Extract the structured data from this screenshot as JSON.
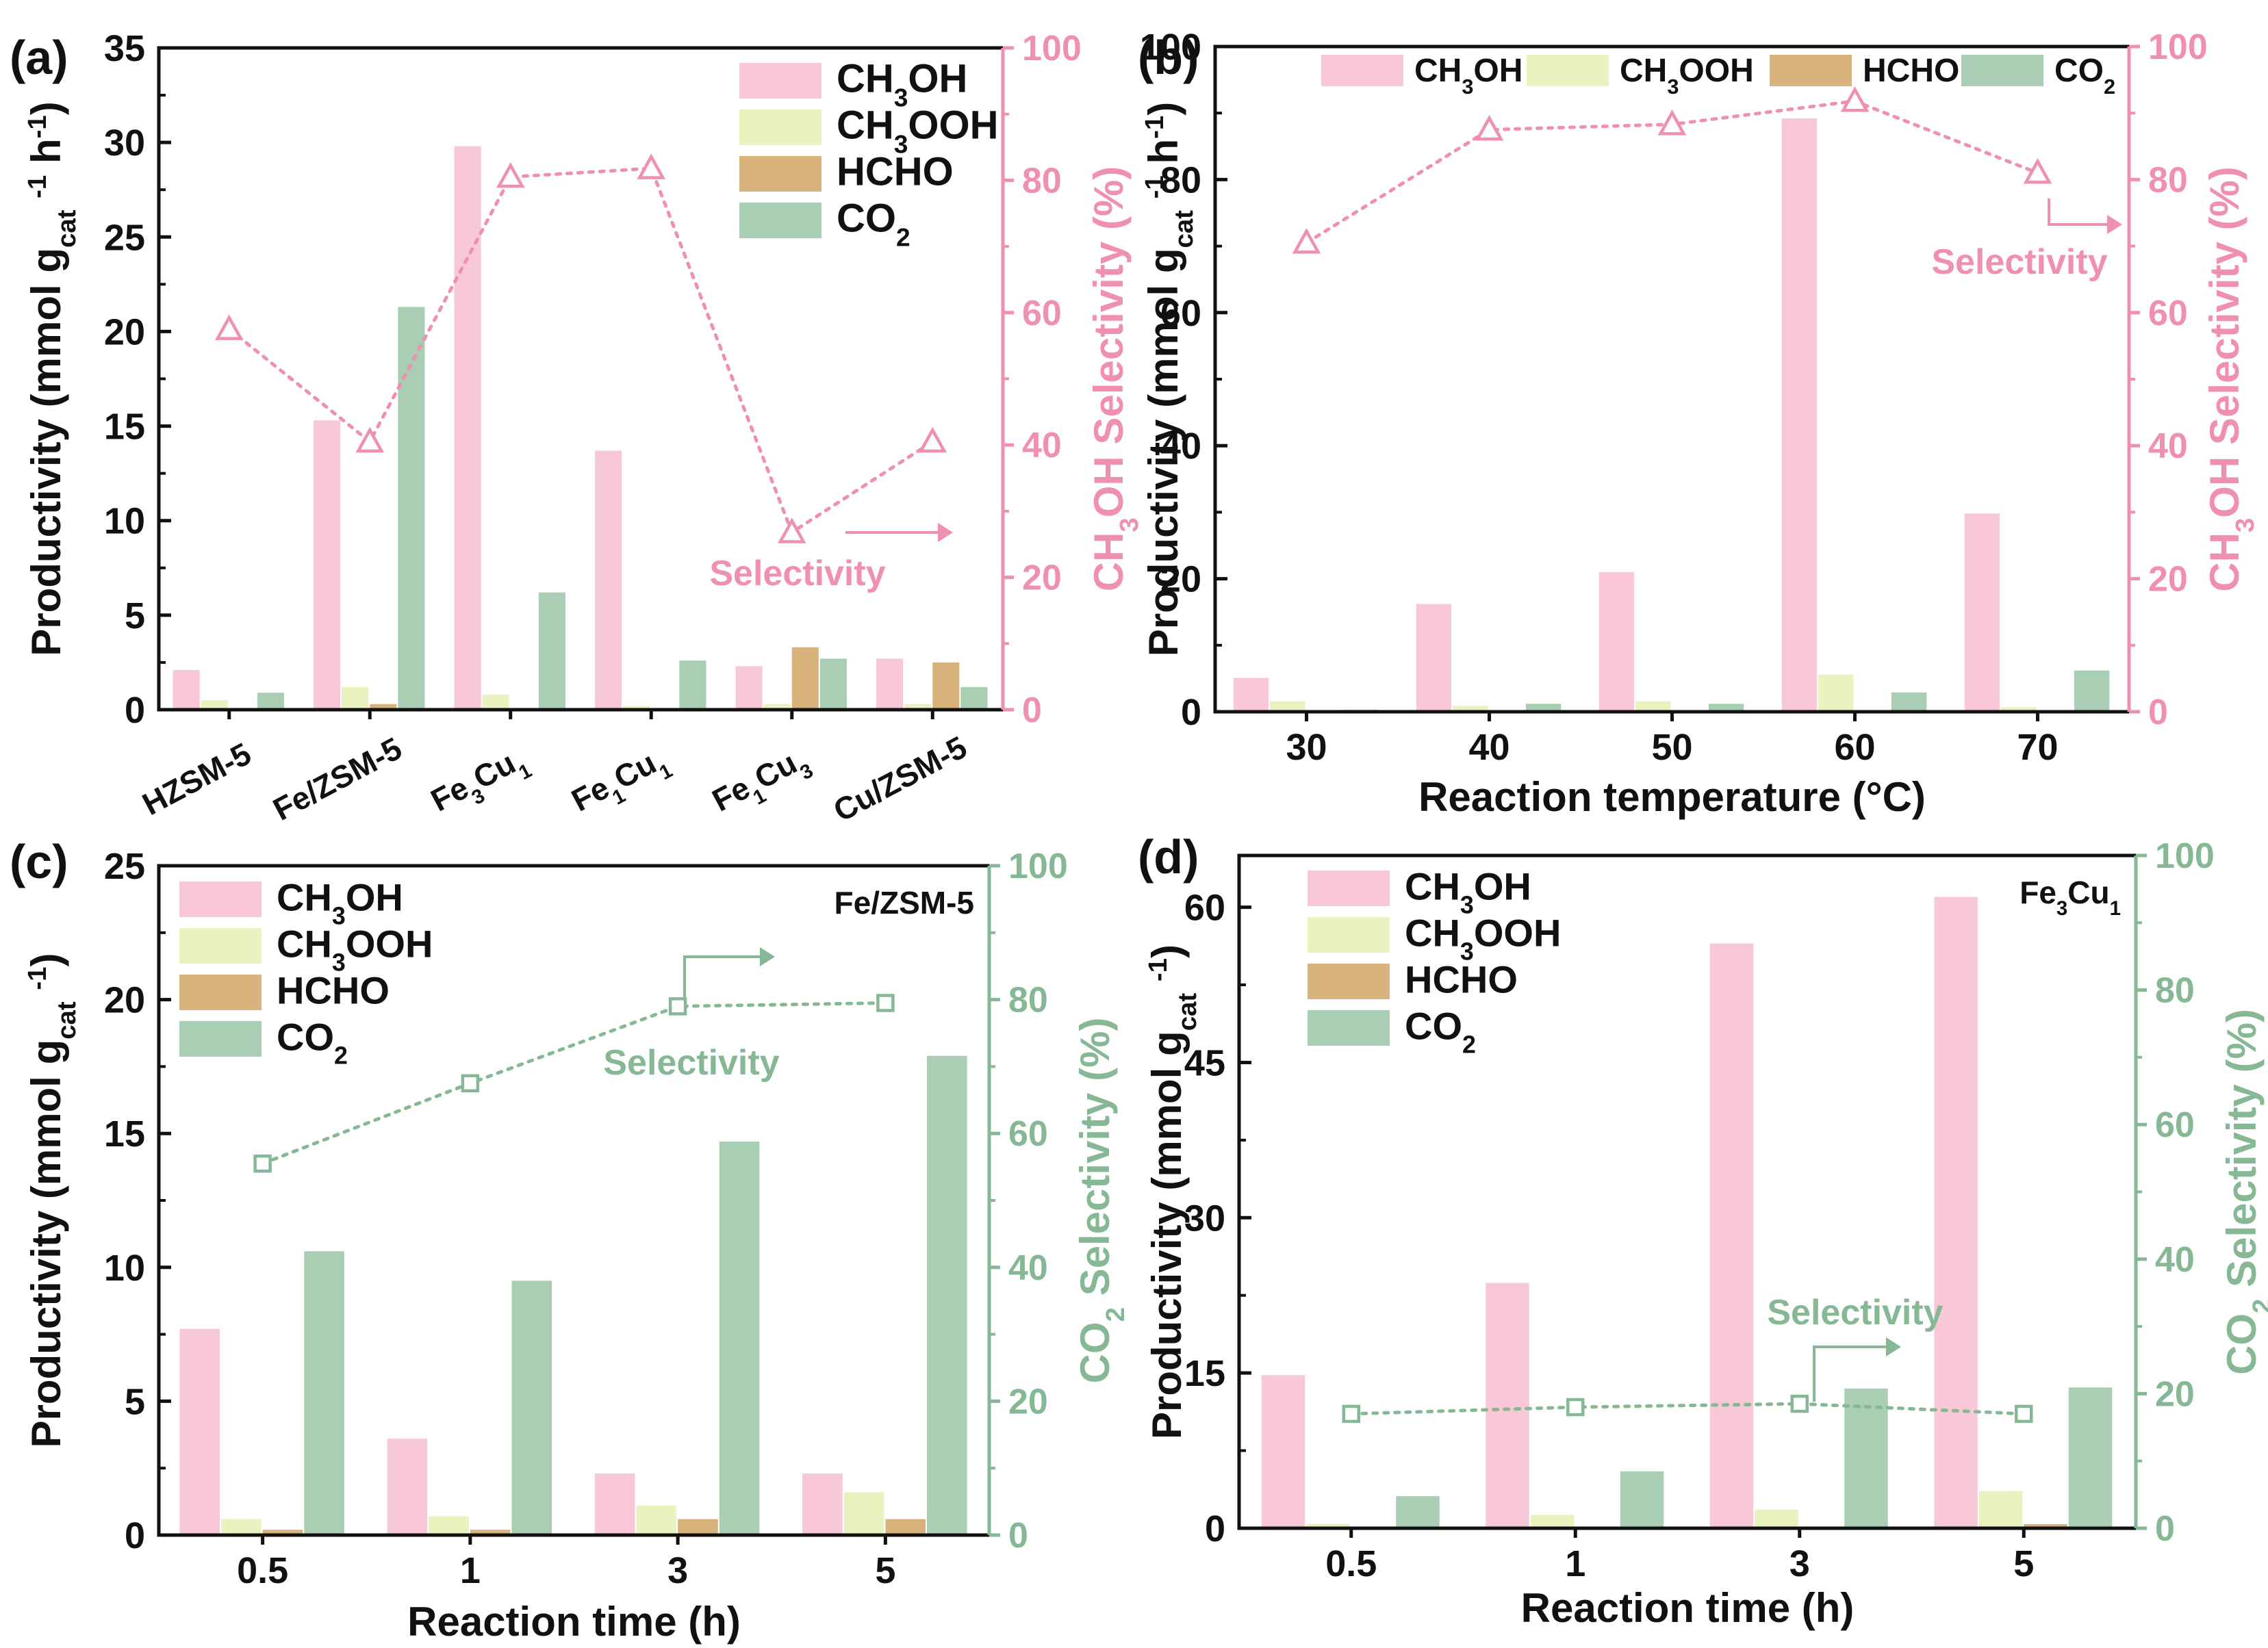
{
  "figure": {
    "type": "composite",
    "panel_count": 4
  },
  "colors": {
    "CH3OH": "#f8c8d8",
    "CH3OOH": "#eaf2c0",
    "HCHO": "#d8b47c",
    "CO2": "#a9ceb4",
    "sel_pink": "#f090b0",
    "sel_green": "#86b895",
    "axis": "#111111"
  },
  "chart_data": [
    {
      "panel": "(a)",
      "type": "bar",
      "categories": [
        "HZSM-5",
        "Fe/ZSM-5",
        "Fe3Cu1",
        "Fe1Cu1",
        "Fe1Cu3",
        "Cu/ZSM-5"
      ],
      "category_labels": [
        {
          "parts": [
            {
              "t": "HZSM-5"
            }
          ]
        },
        {
          "parts": [
            {
              "t": "Fe/ZSM-5"
            }
          ]
        },
        {
          "parts": [
            {
              "t": "Fe"
            },
            {
              "t": "3",
              "sub": true
            },
            {
              "t": "Cu"
            },
            {
              "t": "1",
              "sub": true
            }
          ]
        },
        {
          "parts": [
            {
              "t": "Fe"
            },
            {
              "t": "1",
              "sub": true
            },
            {
              "t": "Cu"
            },
            {
              "t": "1",
              "sub": true
            }
          ]
        },
        {
          "parts": [
            {
              "t": "Fe"
            },
            {
              "t": "1",
              "sub": true
            },
            {
              "t": "Cu"
            },
            {
              "t": "3",
              "sub": true
            }
          ]
        },
        {
          "parts": [
            {
              "t": "Cu/ZSM-5"
            }
          ]
        }
      ],
      "series": [
        {
          "name": "CH3OH",
          "values": [
            2.1,
            15.3,
            29.8,
            13.7,
            2.3,
            2.7
          ]
        },
        {
          "name": "CH3OOH",
          "values": [
            0.5,
            1.2,
            0.8,
            0.2,
            0.3,
            0.3
          ]
        },
        {
          "name": "HCHO",
          "values": [
            0.0,
            0.3,
            0.0,
            0.0,
            3.3,
            2.5
          ]
        },
        {
          "name": "CO2",
          "values": [
            0.9,
            21.3,
            6.2,
            2.6,
            2.7,
            1.2
          ]
        }
      ],
      "selectivity": {
        "name": "CH3OH Selectivity",
        "values": [
          57.5,
          40.5,
          80.5,
          81.8,
          26.8,
          40.5
        ],
        "marker": "triangle",
        "color_key": "sel_pink"
      },
      "ylabel": {
        "parts": [
          {
            "t": "Productivity (mmol g"
          },
          {
            "t": "cat",
            "sub": true
          },
          {
            "t": " "
          },
          {
            "t": "-1",
            "sup": true
          },
          {
            "t": " h"
          },
          {
            "t": "-1",
            "sup": true
          },
          {
            "t": ")"
          }
        ]
      },
      "y2label": {
        "parts": [
          {
            "t": "CH"
          },
          {
            "t": "3",
            "sub": true
          },
          {
            "t": "OH Selectivity (%)"
          }
        ]
      },
      "xlabel": "",
      "ylim": [
        0,
        35
      ],
      "yticks": [
        0,
        5,
        10,
        15,
        20,
        25,
        30,
        35
      ],
      "y2lim": [
        0,
        100
      ],
      "y2ticks": [
        0,
        20,
        40,
        60,
        80,
        100
      ],
      "annotation": "Selectivity",
      "legend_position": "top-right",
      "corner_label": null
    },
    {
      "panel": "(b)",
      "type": "bar",
      "categories": [
        "30",
        "40",
        "50",
        "60",
        "70"
      ],
      "series": [
        {
          "name": "CH3OH",
          "values": [
            5.1,
            16.2,
            21.0,
            89.2,
            29.8
          ]
        },
        {
          "name": "CH3OOH",
          "values": [
            1.6,
            0.9,
            1.6,
            5.6,
            0.7
          ]
        },
        {
          "name": "HCHO",
          "values": [
            0.0,
            0.0,
            0.0,
            0.0,
            0.0
          ]
        },
        {
          "name": "CO2",
          "values": [
            0.3,
            1.2,
            1.2,
            2.9,
            6.2
          ]
        }
      ],
      "selectivity": {
        "name": "CH3OH Selectivity",
        "values": [
          70.5,
          87.5,
          88.3,
          91.8,
          81.0
        ],
        "marker": "triangle",
        "color_key": "sel_pink"
      },
      "ylabel": {
        "parts": [
          {
            "t": "Productivity (mmol g"
          },
          {
            "t": "cat",
            "sub": true
          },
          {
            "t": " "
          },
          {
            "t": "-1",
            "sup": true
          },
          {
            "t": " h"
          },
          {
            "t": "-1",
            "sup": true
          },
          {
            "t": ")"
          }
        ]
      },
      "y2label": {
        "parts": [
          {
            "t": "CH"
          },
          {
            "t": "3",
            "sub": true
          },
          {
            "t": "OH Selectivity (%)"
          }
        ]
      },
      "xlabel": "Reaction temperature (°C)",
      "ylim": [
        0,
        100
      ],
      "yticks": [
        0,
        20,
        40,
        60,
        80,
        100
      ],
      "y2lim": [
        0,
        100
      ],
      "y2ticks": [
        0,
        20,
        40,
        60,
        80,
        100
      ],
      "annotation": "Selectivity",
      "legend_position": "top (single row)",
      "corner_label": null
    },
    {
      "panel": "(c)",
      "type": "bar",
      "categories": [
        "0.5",
        "1",
        "3",
        "5"
      ],
      "series": [
        {
          "name": "CH3OH",
          "values": [
            7.7,
            3.6,
            2.3,
            2.3
          ]
        },
        {
          "name": "CH3OOH",
          "values": [
            0.6,
            0.7,
            1.1,
            1.6
          ]
        },
        {
          "name": "HCHO",
          "values": [
            0.2,
            0.2,
            0.6,
            0.6
          ]
        },
        {
          "name": "CO2",
          "values": [
            10.6,
            9.5,
            14.7,
            17.9
          ]
        }
      ],
      "selectivity": {
        "name": "CO2 Selectivity",
        "values": [
          55.5,
          67.5,
          79.0,
          79.5
        ],
        "marker": "square",
        "color_key": "sel_green"
      },
      "ylabel": {
        "parts": [
          {
            "t": "Productivity (mmol g"
          },
          {
            "t": "cat",
            "sub": true
          },
          {
            "t": " "
          },
          {
            "t": "-1",
            "sup": true
          },
          {
            "t": ")"
          }
        ]
      },
      "y2label": {
        "parts": [
          {
            "t": "CO"
          },
          {
            "t": "2",
            "sub": true
          },
          {
            "t": " Selectivity (%)"
          }
        ]
      },
      "xlabel": "Reaction time (h)",
      "ylim": [
        0,
        25
      ],
      "yticks": [
        0,
        5,
        10,
        15,
        20,
        25
      ],
      "y2lim": [
        0,
        100
      ],
      "y2ticks": [
        0,
        20,
        40,
        60,
        80,
        100
      ],
      "annotation": "Selectivity",
      "legend_position": "top-left",
      "corner_label": {
        "parts": [
          {
            "t": "Fe/ZSM-5"
          }
        ]
      }
    },
    {
      "panel": "(d)",
      "type": "bar",
      "categories": [
        "0.5",
        "1",
        "3",
        "5"
      ],
      "series": [
        {
          "name": "CH3OH",
          "values": [
            14.8,
            23.7,
            56.5,
            61.0
          ]
        },
        {
          "name": "CH3OOH",
          "values": [
            0.4,
            1.3,
            1.8,
            3.6
          ]
        },
        {
          "name": "HCHO",
          "values": [
            0.0,
            0.0,
            0.0,
            0.4
          ]
        },
        {
          "name": "CO2",
          "values": [
            3.1,
            5.5,
            13.5,
            13.6
          ]
        }
      ],
      "selectivity": {
        "name": "CO2 Selectivity",
        "values": [
          17.0,
          18.0,
          18.5,
          17.0
        ],
        "marker": "square",
        "color_key": "sel_green"
      },
      "ylabel": {
        "parts": [
          {
            "t": "Productivity (mmol g"
          },
          {
            "t": "cat",
            "sub": true
          },
          {
            "t": " "
          },
          {
            "t": "-1",
            "sup": true
          },
          {
            "t": ")"
          }
        ]
      },
      "y2label": {
        "parts": [
          {
            "t": "CO"
          },
          {
            "t": "2",
            "sub": true
          },
          {
            "t": " Selectivity (%)"
          }
        ]
      },
      "xlabel": "Reaction time (h)",
      "ylim": [
        0,
        65
      ],
      "yticks": [
        0,
        15,
        30,
        45,
        60
      ],
      "y2lim": [
        0,
        100
      ],
      "y2ticks": [
        0,
        20,
        40,
        60,
        80,
        100
      ],
      "annotation": "Selectivity",
      "legend_position": "top-left",
      "corner_label": {
        "parts": [
          {
            "t": "Fe"
          },
          {
            "t": "3",
            "sub": true
          },
          {
            "t": "Cu"
          },
          {
            "t": "1",
            "sub": true
          }
        ]
      }
    }
  ],
  "legend_entries": {
    "CH3OH": {
      "parts": [
        {
          "t": "CH"
        },
        {
          "t": "3",
          "sub": true
        },
        {
          "t": "OH"
        }
      ]
    },
    "CH3OOH": {
      "parts": [
        {
          "t": "CH"
        },
        {
          "t": "3",
          "sub": true
        },
        {
          "t": "OOH"
        }
      ]
    },
    "HCHO": {
      "parts": [
        {
          "t": "HCHO"
        }
      ]
    },
    "CO2": {
      "parts": [
        {
          "t": "CO"
        },
        {
          "t": "2",
          "sub": true
        }
      ]
    }
  }
}
